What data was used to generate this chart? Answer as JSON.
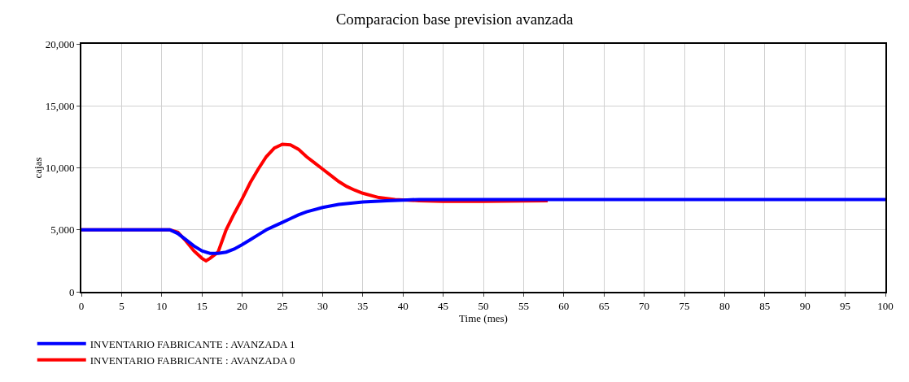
{
  "chart_data": {
    "type": "line",
    "title": "Comparacion base prevision avanzada",
    "xlabel": "Time (mes)",
    "ylabel": "cajas",
    "xlim": [
      0,
      100
    ],
    "xticks": [
      0,
      5,
      10,
      15,
      20,
      25,
      30,
      35,
      40,
      45,
      50,
      55,
      60,
      65,
      70,
      75,
      80,
      85,
      90,
      95,
      100
    ],
    "ylim": [
      0,
      20000
    ],
    "yticks": [
      {
        "value": 0,
        "label": "0"
      },
      {
        "value": 5000,
        "label": "5,000"
      },
      {
        "value": 10000,
        "label": "10,000"
      },
      {
        "value": 15000,
        "label": "15,000"
      },
      {
        "value": 20000,
        "label": "20,000"
      }
    ],
    "grid": true,
    "legend": "bottom",
    "marker": "none",
    "line_style": "solid",
    "series": [
      {
        "name": "INVENTARIO FABRICANTE : AVANZADA 1",
        "color": "#0000ff",
        "x": [
          0,
          11,
          12,
          13,
          14,
          15,
          16,
          17,
          18,
          19,
          20,
          21,
          22,
          23,
          24,
          25,
          26,
          27,
          28,
          30,
          32,
          35,
          38,
          40,
          42,
          100
        ],
        "values": [
          5000,
          5000,
          4700,
          4200,
          3700,
          3300,
          3100,
          3100,
          3200,
          3450,
          3800,
          4200,
          4600,
          5000,
          5300,
          5600,
          5900,
          6200,
          6450,
          6800,
          7050,
          7250,
          7350,
          7400,
          7450,
          7450
        ]
      },
      {
        "name": "INVENTARIO FABRICANTE : AVANZADA 0",
        "color": "#ff0000",
        "x": [
          0,
          11,
          12,
          13,
          14,
          15,
          15.5,
          16,
          17,
          18,
          19,
          20,
          21,
          22,
          23,
          24,
          25,
          26,
          27,
          28,
          29,
          30,
          31,
          32,
          33,
          34,
          35,
          37,
          39,
          42,
          45,
          50,
          55,
          58
        ],
        "values": [
          5000,
          5000,
          4800,
          4100,
          3300,
          2700,
          2500,
          2700,
          3200,
          5000,
          6300,
          7500,
          8800,
          9900,
          10900,
          11600,
          11900,
          11850,
          11500,
          10900,
          10400,
          9900,
          9400,
          8900,
          8500,
          8200,
          7950,
          7600,
          7450,
          7350,
          7300,
          7300,
          7330,
          7350
        ]
      }
    ]
  }
}
